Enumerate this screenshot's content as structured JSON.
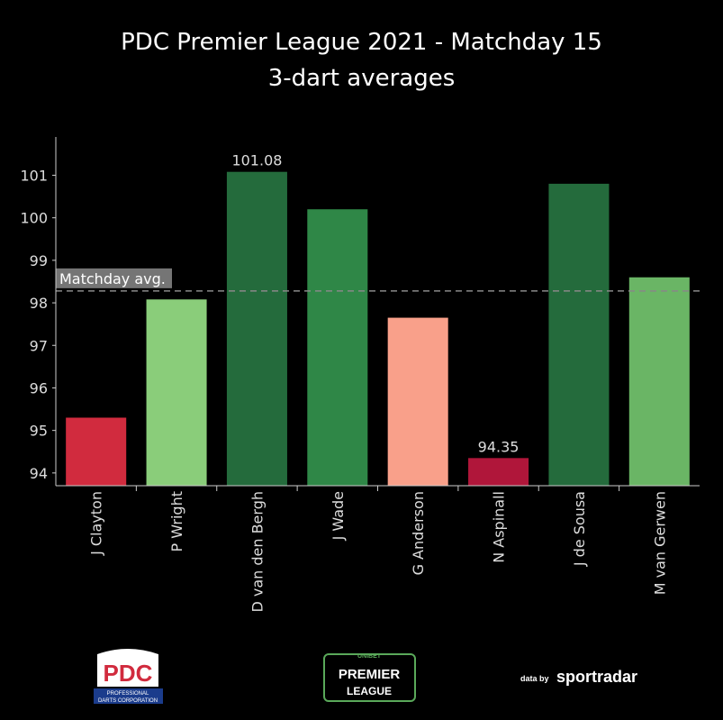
{
  "title": "PDC Premier League 2021 - Matchday 15",
  "subtitle": "3-dart averages",
  "chart_data": {
    "type": "bar",
    "title": "PDC Premier League 2021 - Matchday 15",
    "subtitle": "3-dart averages",
    "categories": [
      "J Clayton",
      "P Wright",
      "D van den Bergh",
      "J Wade",
      "G Anderson",
      "N Aspinall",
      "J de Sousa",
      "M van Gerwen"
    ],
    "values": [
      95.3,
      98.08,
      101.08,
      100.2,
      97.65,
      94.35,
      100.8,
      98.6
    ],
    "bar_colors": [
      "#d12b3e",
      "#8acd7a",
      "#246b3c",
      "#2f8747",
      "#f9a08a",
      "#b0163a",
      "#246b3c",
      "#6ab565"
    ],
    "data_labels": [
      {
        "index": 2,
        "text": "101.08"
      },
      {
        "index": 5,
        "text": "94.35"
      }
    ],
    "reference_line": {
      "label": "Matchday avg.",
      "value": 98.28
    },
    "yticks": [
      94,
      95,
      96,
      97,
      98,
      99,
      100,
      101
    ],
    "ylim": [
      93.7,
      101.9
    ],
    "xlabel": "",
    "ylabel": "",
    "grid": false
  },
  "logos": {
    "pdc": {
      "main": "PDC",
      "sub1": "PROFESSIONAL",
      "sub2": "DARTS CORPORATION"
    },
    "premier_league": {
      "top": "UNIBET",
      "line1": "PREMIER",
      "line2": "LEAGUE"
    },
    "sportradar": {
      "prefix": "data by",
      "brand": "sportradar"
    }
  },
  "colors": {
    "background": "#000000",
    "axis": "#cccccc",
    "reference_line": "#888888"
  }
}
